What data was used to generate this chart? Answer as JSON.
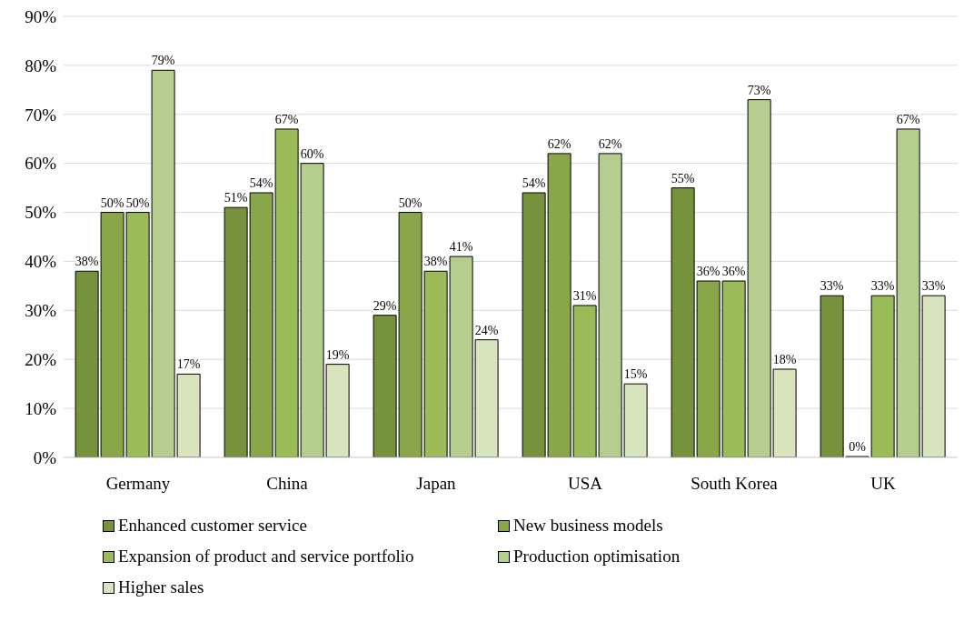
{
  "chart_data": {
    "type": "bar",
    "categories": [
      "Germany",
      "China",
      "Japan",
      "USA",
      "South Korea",
      "UK"
    ],
    "series": [
      {
        "name": "Enhanced customer service",
        "color": "#76923c",
        "values": [
          38,
          51,
          29,
          54,
          55,
          33
        ],
        "value_labels": [
          "38%",
          "51%",
          "29%",
          "54%",
          "55%",
          "33%"
        ]
      },
      {
        "name": "New business models",
        "color": "#8aa64a",
        "values": [
          50,
          54,
          50,
          62,
          36,
          0
        ],
        "value_labels": [
          "50%",
          "54%",
          "50%",
          "62%",
          "36%",
          "0%"
        ]
      },
      {
        "name": "Expansion of product and service portfolio",
        "color": "#9bbb59",
        "values": [
          50,
          67,
          38,
          31,
          36,
          33
        ],
        "value_labels": [
          "50%",
          "67%",
          "38%",
          "31%",
          "36%",
          "33%"
        ]
      },
      {
        "name": "Production optimisation",
        "color": "#b5cd8e",
        "values": [
          79,
          60,
          41,
          62,
          73,
          67
        ],
        "value_labels": [
          "79%",
          "60%",
          "41%",
          "62%",
          "73%",
          "67%"
        ]
      },
      {
        "name": "Higher sales",
        "color": "#d7e4bd",
        "values": [
          17,
          19,
          24,
          15,
          18,
          33
        ],
        "value_labels": [
          "17%",
          "19%",
          "24%",
          "15%",
          "18%",
          "33%"
        ]
      }
    ],
    "ylim": [
      0,
      90
    ],
    "yticks": [
      {
        "value": 0,
        "label": "0%"
      },
      {
        "value": 10,
        "label": "10%"
      },
      {
        "value": 20,
        "label": "20%"
      },
      {
        "value": 30,
        "label": "30%"
      },
      {
        "value": 40,
        "label": "40%"
      },
      {
        "value": 50,
        "label": "50%"
      },
      {
        "value": 60,
        "label": "60%"
      },
      {
        "value": 70,
        "label": "70%"
      },
      {
        "value": 80,
        "label": "80%"
      },
      {
        "value": 90,
        "label": "90%"
      }
    ],
    "grid": "y",
    "legend": "bottom"
  }
}
